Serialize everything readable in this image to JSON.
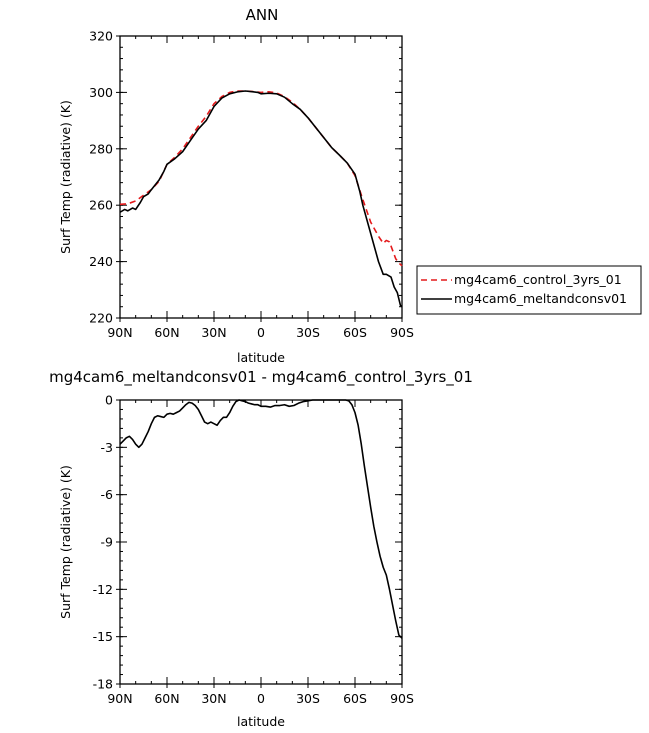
{
  "chart_data": [
    {
      "type": "line",
      "title": "ANN",
      "xlabel": "latitude",
      "ylabel": "Surf Temp (radiative) (K)",
      "xlim": [
        90,
        -90
      ],
      "ylim": [
        220,
        320
      ],
      "x_ticks": [
        {
          "value": 90,
          "label": "90N"
        },
        {
          "value": 60,
          "label": "60N"
        },
        {
          "value": 30,
          "label": "30N"
        },
        {
          "value": 0,
          "label": "0"
        },
        {
          "value": -30,
          "label": "30S"
        },
        {
          "value": -60,
          "label": "60S"
        },
        {
          "value": -90,
          "label": "90S"
        }
      ],
      "y_ticks": [
        220,
        240,
        260,
        280,
        300,
        320
      ],
      "legend_position": "right",
      "series": [
        {
          "name": "mg4cam6_control_3yrs_01",
          "color": "#e41a1c",
          "dash": "dashed",
          "x": [
            90,
            85,
            80,
            75,
            70,
            65,
            60,
            55,
            50,
            45,
            40,
            35,
            30,
            25,
            20,
            15,
            10,
            5,
            0,
            -5,
            -10,
            -15,
            -20,
            -25,
            -30,
            -35,
            -40,
            -45,
            -50,
            -55,
            -60,
            -65,
            -70,
            -72,
            -75,
            -78,
            -80,
            -82,
            -84,
            -86,
            -88,
            -90
          ],
          "y": [
            260.3,
            260.5,
            261.5,
            263.5,
            265.5,
            268.5,
            274.5,
            277,
            280,
            284,
            288,
            291.5,
            296,
            298.5,
            300,
            300.5,
            300.5,
            300.3,
            300,
            300.2,
            299.8,
            298.5,
            296.5,
            294,
            291,
            287.5,
            284,
            280.5,
            277.8,
            275,
            270.5,
            262,
            254,
            252,
            249,
            246.5,
            247.5,
            247,
            244,
            241,
            239.5,
            238.5
          ]
        },
        {
          "name": "mg4cam6_meltandconsv01",
          "color": "#000000",
          "dash": "solid",
          "x": [
            90,
            87,
            85,
            82,
            80,
            77,
            75,
            72,
            70,
            65,
            62,
            60,
            55,
            50,
            45,
            40,
            35,
            30,
            25,
            20,
            15,
            10,
            5,
            2,
            0,
            -5,
            -10,
            -15,
            -20,
            -25,
            -30,
            -35,
            -40,
            -45,
            -50,
            -55,
            -60,
            -63,
            -65,
            -70,
            -75,
            -78,
            -80,
            -83,
            -85,
            -87,
            -89,
            -90
          ],
          "y": [
            257.5,
            258.5,
            258,
            259,
            258.5,
            261,
            263,
            264,
            265.5,
            269,
            272,
            274.5,
            276.5,
            279,
            283,
            287,
            290,
            295,
            298,
            299.5,
            300.2,
            300.5,
            300.2,
            300,
            299.5,
            299.7,
            299.5,
            298.3,
            296,
            294,
            291,
            287.5,
            284,
            280.5,
            277.8,
            275,
            271,
            265,
            260,
            250,
            240,
            235.5,
            235.5,
            234.5,
            231,
            229,
            224.5,
            224
          ]
        }
      ]
    },
    {
      "type": "line",
      "title": "mg4cam6_meltandconsv01 - mg4cam6_control_3yrs_01",
      "xlabel": "latitude",
      "ylabel": "Surf Temp (radiative) (K)",
      "xlim": [
        90,
        -90
      ],
      "ylim": [
        -18,
        0
      ],
      "x_ticks": [
        {
          "value": 90,
          "label": "90N"
        },
        {
          "value": 60,
          "label": "60N"
        },
        {
          "value": 30,
          "label": "30N"
        },
        {
          "value": 0,
          "label": "0"
        },
        {
          "value": -30,
          "label": "30S"
        },
        {
          "value": -60,
          "label": "60S"
        },
        {
          "value": -90,
          "label": "90S"
        }
      ],
      "y_ticks": [
        -18,
        -15,
        -12,
        -9,
        -6,
        -3,
        0
      ],
      "series": [
        {
          "color": "#000000",
          "dash": "solid",
          "x": [
            90,
            88,
            86,
            84,
            82,
            80,
            78,
            76,
            74,
            72,
            70,
            68,
            66,
            64,
            62,
            60,
            58,
            56,
            54,
            52,
            50,
            48,
            46,
            44,
            42,
            40,
            38,
            36,
            34,
            32,
            30,
            28,
            26,
            24,
            22,
            20,
            18,
            16,
            14,
            12,
            10,
            8,
            6,
            4,
            2,
            0,
            -3,
            -6,
            -9,
            -12,
            -15,
            -18,
            -21,
            -24,
            -27,
            -30,
            -33,
            -36,
            -40,
            -45,
            -50,
            -54,
            -56,
            -58,
            -60,
            -62,
            -64,
            -66,
            -68,
            -70,
            -72,
            -74,
            -76,
            -78,
            -80,
            -82,
            -84,
            -86,
            -88,
            -90
          ],
          "y": [
            -2.8,
            -2.6,
            -2.4,
            -2.3,
            -2.5,
            -2.8,
            -3.0,
            -2.8,
            -2.4,
            -2.0,
            -1.5,
            -1.1,
            -1.0,
            -1.05,
            -1.1,
            -0.9,
            -0.85,
            -0.9,
            -0.8,
            -0.7,
            -0.5,
            -0.3,
            -0.15,
            -0.2,
            -0.35,
            -0.6,
            -1.0,
            -1.4,
            -1.5,
            -1.4,
            -1.5,
            -1.6,
            -1.3,
            -1.1,
            -1.1,
            -0.8,
            -0.4,
            -0.1,
            0,
            -0.05,
            -0.1,
            -0.2,
            -0.25,
            -0.3,
            -0.3,
            -0.4,
            -0.4,
            -0.45,
            -0.35,
            -0.35,
            -0.3,
            -0.4,
            -0.35,
            -0.2,
            -0.1,
            -0.05,
            0,
            0,
            0,
            0,
            0,
            0,
            -0.05,
            -0.3,
            -0.8,
            -1.6,
            -2.8,
            -4.2,
            -5.5,
            -6.8,
            -8.0,
            -9.0,
            -9.9,
            -10.6,
            -11.1,
            -12.0,
            -13.0,
            -14.0,
            -14.9,
            -15.1
          ]
        }
      ]
    }
  ]
}
